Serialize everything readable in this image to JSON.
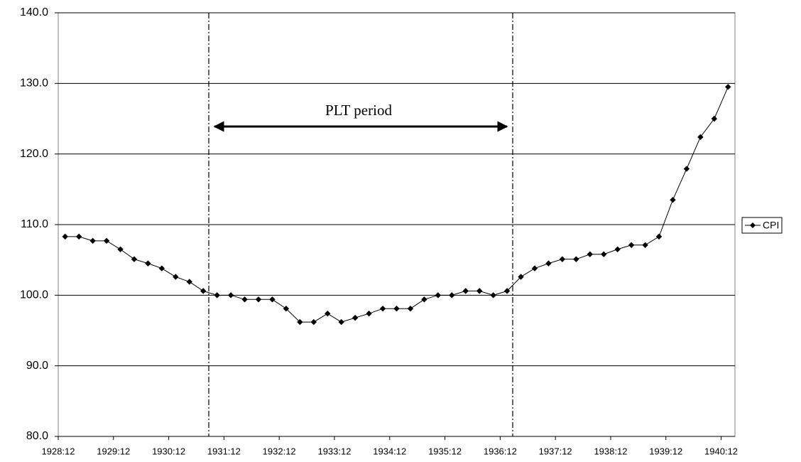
{
  "chart_data": {
    "type": "line",
    "categories": [
      "1928:12",
      null,
      null,
      null,
      "1929:12",
      null,
      null,
      null,
      "1930:12",
      null,
      null,
      null,
      "1931:12",
      null,
      null,
      null,
      "1932:12",
      null,
      null,
      null,
      "1933:12",
      null,
      null,
      null,
      "1934:12",
      null,
      null,
      null,
      "1935:12",
      null,
      null,
      null,
      "1936:12",
      null,
      null,
      null,
      "1937:12",
      null,
      null,
      null,
      "1938:12",
      null,
      null,
      null,
      "1939:12",
      null,
      null,
      null,
      "1940:12"
    ],
    "series": [
      {
        "name": "CPI",
        "color": "#000000",
        "values": [
          108.3,
          108.3,
          107.7,
          107.7,
          106.5,
          105.1,
          104.5,
          103.8,
          102.6,
          101.9,
          100.6,
          100.0,
          100.0,
          99.4,
          99.4,
          99.4,
          98.1,
          96.2,
          96.2,
          97.4,
          96.2,
          96.8,
          97.4,
          98.1,
          98.1,
          98.1,
          99.4,
          100.0,
          100.0,
          100.6,
          100.6,
          100.0,
          100.6,
          102.6,
          103.8,
          104.5,
          105.1,
          105.1,
          105.8,
          105.8,
          106.5,
          107.1,
          107.1,
          108.3,
          113.5,
          117.9,
          122.4,
          125.0,
          129.5
        ]
      }
    ],
    "ylim": [
      80,
      140
    ],
    "yticks": [
      {
        "value": 80,
        "label": "80.0"
      },
      {
        "value": 90,
        "label": "90.0"
      },
      {
        "value": 100,
        "label": "100.0"
      },
      {
        "value": 110,
        "label": "110.0"
      },
      {
        "value": 120,
        "label": "120.0"
      },
      {
        "value": 130,
        "label": "130.0"
      },
      {
        "value": 140,
        "label": "140.0"
      }
    ],
    "grid": true,
    "legend": "right",
    "annotation": "PLT period"
  }
}
